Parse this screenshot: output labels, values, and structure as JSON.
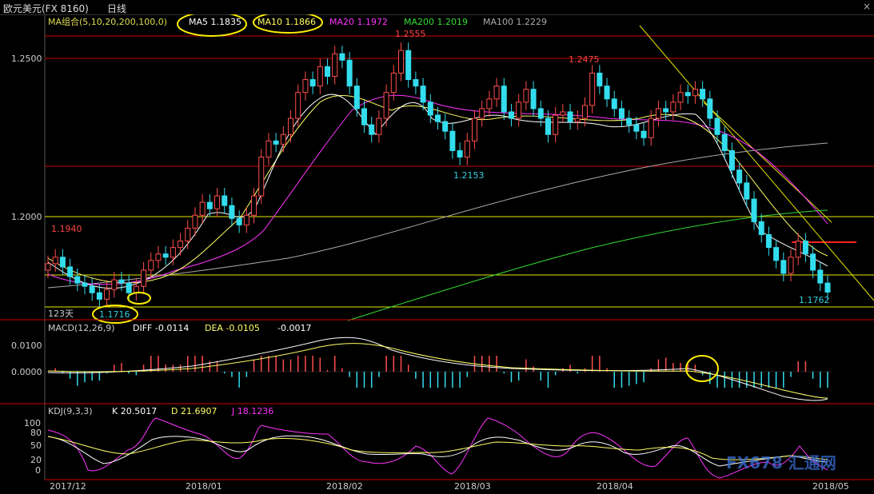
{
  "window": {
    "title": "欧元美元(FX 8160)",
    "period": "日线",
    "close_glyph": "×"
  },
  "price_panel": {
    "indicator_label": "MA组合(5,10,20,200,100,0)",
    "ma_values": [
      {
        "label": "MA5 1.1835",
        "color": "#ffffff"
      },
      {
        "label": "MA10 1.1866",
        "color": "#ffff66"
      },
      {
        "label": "MA20 1.1972",
        "color": "#ff33ff"
      },
      {
        "label": "MA200 1.2019",
        "color": "#33dd33"
      },
      {
        "label": "MA100 1.2229",
        "color": "#aaaaaa"
      }
    ],
    "y_ticks": [
      "1.2500",
      "1.2000"
    ],
    "annotations": [
      {
        "text": "1.2555",
        "color": "#ff4444"
      },
      {
        "text": "1.2475",
        "color": "#ff4444"
      },
      {
        "text": "1.2153",
        "color": "#33ccdd"
      },
      {
        "text": "1.1940",
        "color": "#ff4444"
      },
      {
        "text": "1.1762",
        "color": "#33ccdd"
      },
      {
        "text": "1.1716",
        "color": "#33ccdd"
      },
      {
        "text": "123天",
        "color": "#cccccc"
      }
    ]
  },
  "macd_panel": {
    "label": "MACD(12,26,9)",
    "diff": "DIFF -0.0114",
    "dea": "DEA -0.0105",
    "macd": "-0.0017",
    "y_ticks": [
      "0.0100",
      "0.0000"
    ]
  },
  "kdj_panel": {
    "label": "KDJ(9,3,3)",
    "k": "K 20.5017",
    "d": "D 21.6907",
    "j": "J 18.1236",
    "y_ticks": [
      "100",
      "80",
      "50",
      "20",
      "0"
    ]
  },
  "x_axis": {
    "ticks": [
      "2017/12",
      "2018/01",
      "2018/02",
      "2018/03",
      "2018/04",
      "2018/05"
    ]
  },
  "watermark": "FX678 汇通网",
  "colors": {
    "up": "#ff4d4d",
    "down": "#33ddee",
    "grid_red": "#cc0000",
    "grid_yellow": "#e6e600",
    "highlight": "#ffee00"
  },
  "chart_data": {
    "type": "candlestick",
    "x": [
      "2017/12",
      "2018/01",
      "2018/02",
      "2018/03",
      "2018/04",
      "2018/05"
    ],
    "ylim": [
      1.1716,
      1.2555
    ],
    "key_levels": [
      1.2555,
      1.2475,
      1.2153,
      1.194,
      1.1762,
      1.1716
    ],
    "moving_averages": {
      "MA5": 1.1835,
      "MA10": 1.1866,
      "MA20": 1.1972,
      "MA200": 1.2019,
      "MA100": 1.2229
    },
    "closes": [
      1.185,
      1.187,
      1.184,
      1.181,
      1.179,
      1.178,
      1.176,
      1.174,
      1.177,
      1.18,
      1.179,
      1.176,
      1.178,
      1.183,
      1.186,
      1.188,
      1.187,
      1.19,
      1.192,
      1.196,
      1.2,
      1.204,
      1.202,
      1.206,
      1.203,
      1.199,
      1.197,
      1.2,
      1.206,
      1.218,
      1.223,
      1.222,
      1.225,
      1.23,
      1.238,
      1.242,
      1.24,
      1.246,
      1.243,
      1.25,
      1.248,
      1.24,
      1.233,
      1.228,
      1.225,
      1.23,
      1.238,
      1.244,
      1.251,
      1.242,
      1.24,
      1.235,
      1.231,
      1.229,
      1.226,
      1.22,
      1.218,
      1.223,
      1.23,
      1.233,
      1.236,
      1.24,
      1.232,
      1.23,
      1.235,
      1.239,
      1.233,
      1.23,
      1.225,
      1.231,
      1.232,
      1.229,
      1.23,
      1.234,
      1.244,
      1.24,
      1.236,
      1.233,
      1.23,
      1.228,
      1.226,
      1.224,
      1.23,
      1.233,
      1.232,
      1.235,
      1.238,
      1.237,
      1.239,
      1.236,
      1.23,
      1.225,
      1.22,
      1.214,
      1.21,
      1.205,
      1.198,
      1.194,
      1.19,
      1.186,
      1.182,
      1.187,
      1.192,
      1.188,
      1.183,
      1.179,
      1.1762
    ]
  }
}
